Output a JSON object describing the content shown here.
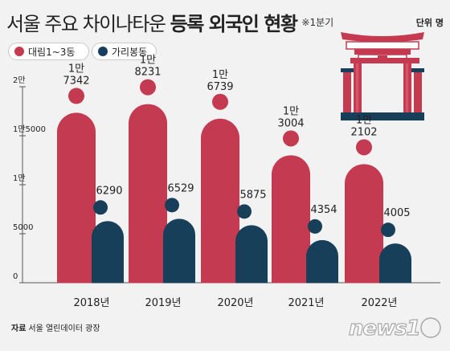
{
  "header": {
    "title_light": "서울 주요 차이나타운",
    "title_bold": "등록 외국인 현황",
    "note": "※1분기",
    "unit": "단위 명"
  },
  "legend": {
    "daerim": "대림1~3동",
    "garibong": "가리봉동"
  },
  "colors": {
    "daerim": "#c43a50",
    "garibong": "#173f5a",
    "axis": "#555555",
    "background": "#f2f2f2"
  },
  "footer": {
    "source_label": "자료",
    "source_text": "서울 열린데이터 광장",
    "logo_text": "news1"
  },
  "chart_data": {
    "type": "bar",
    "categories": [
      "2018년",
      "2019년",
      "2020년",
      "2021년",
      "2022년"
    ],
    "series": [
      {
        "name": "대림1~3동",
        "values": [
          17342,
          18231,
          16739,
          13004,
          12102
        ],
        "labels": [
          [
            "1만",
            "7342"
          ],
          [
            "1만",
            "8231"
          ],
          [
            "1만",
            "6739"
          ],
          [
            "1만",
            "3004"
          ],
          [
            "1만",
            "2102"
          ]
        ]
      },
      {
        "name": "가리봉동",
        "values": [
          6290,
          6529,
          5875,
          4354,
          4005
        ],
        "labels": [
          [
            "6290"
          ],
          [
            "6529"
          ],
          [
            "5875"
          ],
          [
            "4354"
          ],
          [
            "4005"
          ]
        ]
      }
    ],
    "yticks": [
      {
        "value": 0,
        "label": "0"
      },
      {
        "value": 5000,
        "label": "5000"
      },
      {
        "value": 10000,
        "label": "1만"
      },
      {
        "value": 15000,
        "label": "1만5000"
      },
      {
        "value": 20000,
        "label": "2만"
      }
    ],
    "ylim": [
      0,
      20000
    ],
    "legend_position": "top-left",
    "grid": false
  }
}
